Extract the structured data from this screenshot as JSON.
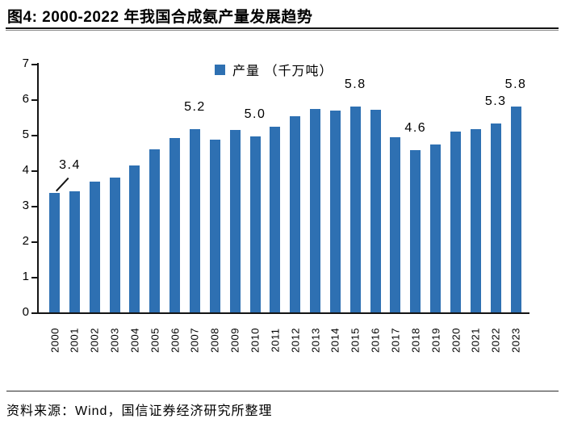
{
  "figure": {
    "title": "图4: 2000-2022 年我国合成氨产量发展趋势",
    "source": "资料来源：Wind，国信证券经济研究所整理"
  },
  "colors": {
    "bar": "#2e70b2",
    "axis": "#141414",
    "text": "#000000",
    "background": "#ffffff"
  },
  "chart_data": {
    "type": "bar",
    "title": "图4: 2000-2022 年我国合成氨产量发展趋势",
    "legend": [
      {
        "label": "产量 （千万吨）",
        "color": "#2e70b2"
      }
    ],
    "legend_position": "top-center",
    "categories": [
      "2000",
      "2001",
      "2002",
      "2003",
      "2004",
      "2005",
      "2006",
      "2007",
      "2008",
      "2009",
      "2010",
      "2011",
      "2012",
      "2013",
      "2014",
      "2015",
      "2016",
      "2017",
      "2018",
      "2019",
      "2020",
      "2021",
      "2022",
      "2023"
    ],
    "values": [
      3.36,
      3.41,
      3.68,
      3.8,
      4.13,
      4.6,
      4.92,
      5.17,
      4.86,
      5.13,
      4.96,
      5.22,
      5.52,
      5.73,
      5.69,
      5.79,
      5.7,
      4.93,
      4.57,
      4.73,
      5.09,
      5.17,
      5.31,
      5.79
    ],
    "xlabel": "",
    "ylabel": "",
    "ylim": [
      0,
      7
    ],
    "yticks": [
      0,
      1,
      2,
      3,
      4,
      5,
      6,
      7
    ],
    "grid": false,
    "annotations": [
      {
        "category": "2000",
        "text": "3.4",
        "leader": true
      },
      {
        "category": "2007",
        "text": "5.2"
      },
      {
        "category": "2010",
        "text": "5.0"
      },
      {
        "category": "2015",
        "text": "5.8"
      },
      {
        "category": "2018",
        "text": "4.6"
      },
      {
        "category": "2022",
        "text": "5.3"
      },
      {
        "category": "2023",
        "text": "5.8"
      }
    ]
  }
}
